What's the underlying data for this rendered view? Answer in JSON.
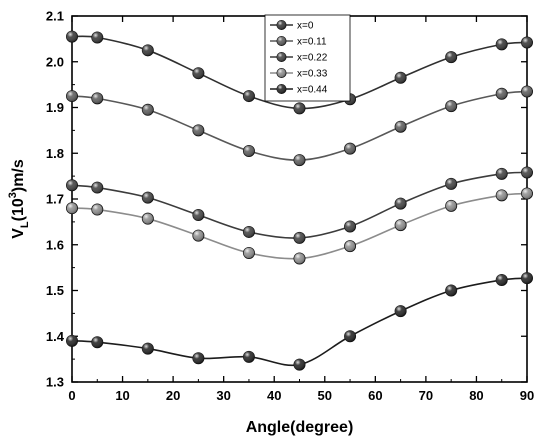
{
  "chart_data": {
    "type": "line",
    "xlabel": "Angle(degree)",
    "ylabel": {
      "base": "V",
      "sub": "L",
      "pre_sup": "(10",
      "sup": "3",
      "post": ")m/s"
    },
    "xlim": [
      0,
      90
    ],
    "ylim": [
      1.3,
      2.1
    ],
    "xticks": [
      0,
      10,
      20,
      30,
      40,
      50,
      60,
      70,
      80,
      90
    ],
    "yticks": [
      1.3,
      1.4,
      1.5,
      1.6,
      1.7,
      1.8,
      1.9,
      2.0,
      2.1
    ],
    "x": [
      0,
      5,
      15,
      25,
      35,
      45,
      55,
      65,
      75,
      85,
      90
    ],
    "grid": false,
    "legend_position": "top-center",
    "series": [
      {
        "name": "x=0",
        "color": "#303030",
        "values": [
          2.055,
          2.053,
          2.025,
          1.975,
          1.925,
          1.898,
          1.918,
          1.965,
          2.01,
          2.038,
          2.042
        ]
      },
      {
        "name": "x=0.11",
        "color": "#585858",
        "values": [
          1.925,
          1.92,
          1.895,
          1.85,
          1.805,
          1.785,
          1.81,
          1.858,
          1.903,
          1.93,
          1.935
        ]
      },
      {
        "name": "x=0.22",
        "color": "#3c3c3c",
        "values": [
          1.73,
          1.725,
          1.703,
          1.665,
          1.628,
          1.615,
          1.64,
          1.69,
          1.733,
          1.755,
          1.758
        ]
      },
      {
        "name": "x=0.33",
        "color": "#8c8c8c",
        "values": [
          1.68,
          1.677,
          1.657,
          1.62,
          1.582,
          1.57,
          1.597,
          1.643,
          1.685,
          1.708,
          1.712
        ]
      },
      {
        "name": "x=0.44",
        "color": "#1c1c1c",
        "values": [
          1.39,
          1.387,
          1.373,
          1.352,
          1.355,
          1.338,
          1.4,
          1.455,
          1.5,
          1.523,
          1.527
        ]
      }
    ]
  }
}
